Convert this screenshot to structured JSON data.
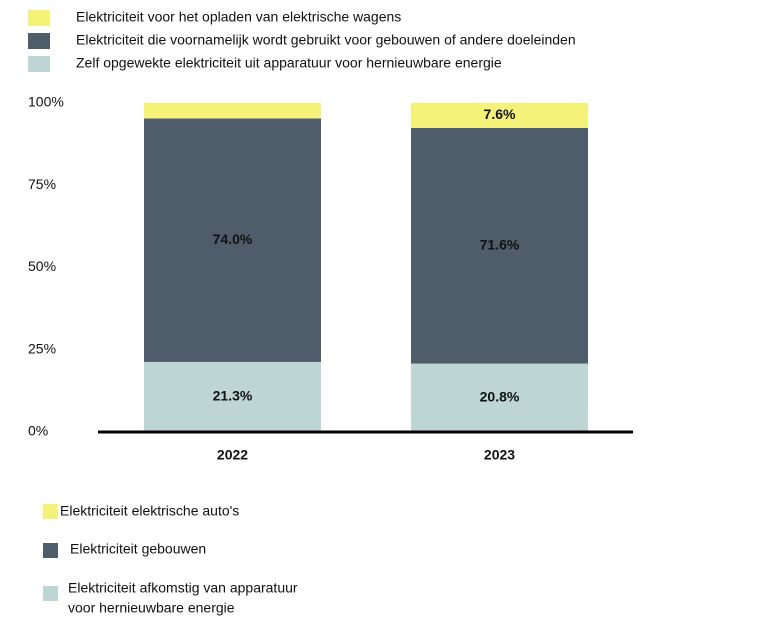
{
  "chart_data": {
    "type": "stacked_bar",
    "categories": [
      "2022",
      "2023"
    ],
    "series": [
      {
        "name": "Zelf opgewekte elektriciteit uit apparatuur voor hernieuwbare energie",
        "color": "#bdd6d3",
        "values": [
          21.3,
          20.8
        ],
        "value_labels": [
          "21.3%",
          "20.8%"
        ]
      },
      {
        "name": "Elektriciteit die voornamelijk wordt gebruikt voor gebouwen of andere doeleinden",
        "color": "#4f5d6b",
        "values": [
          74.0,
          71.6
        ],
        "value_labels": [
          "74.0%",
          "71.6%"
        ]
      },
      {
        "name": "Elektriciteit voor het opladen van elektrische wagens",
        "color": "#f5f27a",
        "values": [
          4.7,
          7.6
        ],
        "value_labels": [
          null,
          "7.6%"
        ]
      }
    ],
    "ylim": [
      0,
      100
    ],
    "yticks": [
      {
        "value": 0,
        "label": "0%"
      },
      {
        "value": 25,
        "label": "25%"
      },
      {
        "value": 50,
        "label": "50%"
      },
      {
        "value": 75,
        "label": "75%"
      },
      {
        "value": 100,
        "label": "100%"
      }
    ],
    "legend2": [
      [
        "Elektriciteit elektrische auto's"
      ],
      [
        "Elektriciteit gebouwen"
      ],
      [
        "Elektriciteit afkomstig van apparatuur",
        "voor hernieuwbare energie"
      ]
    ]
  }
}
